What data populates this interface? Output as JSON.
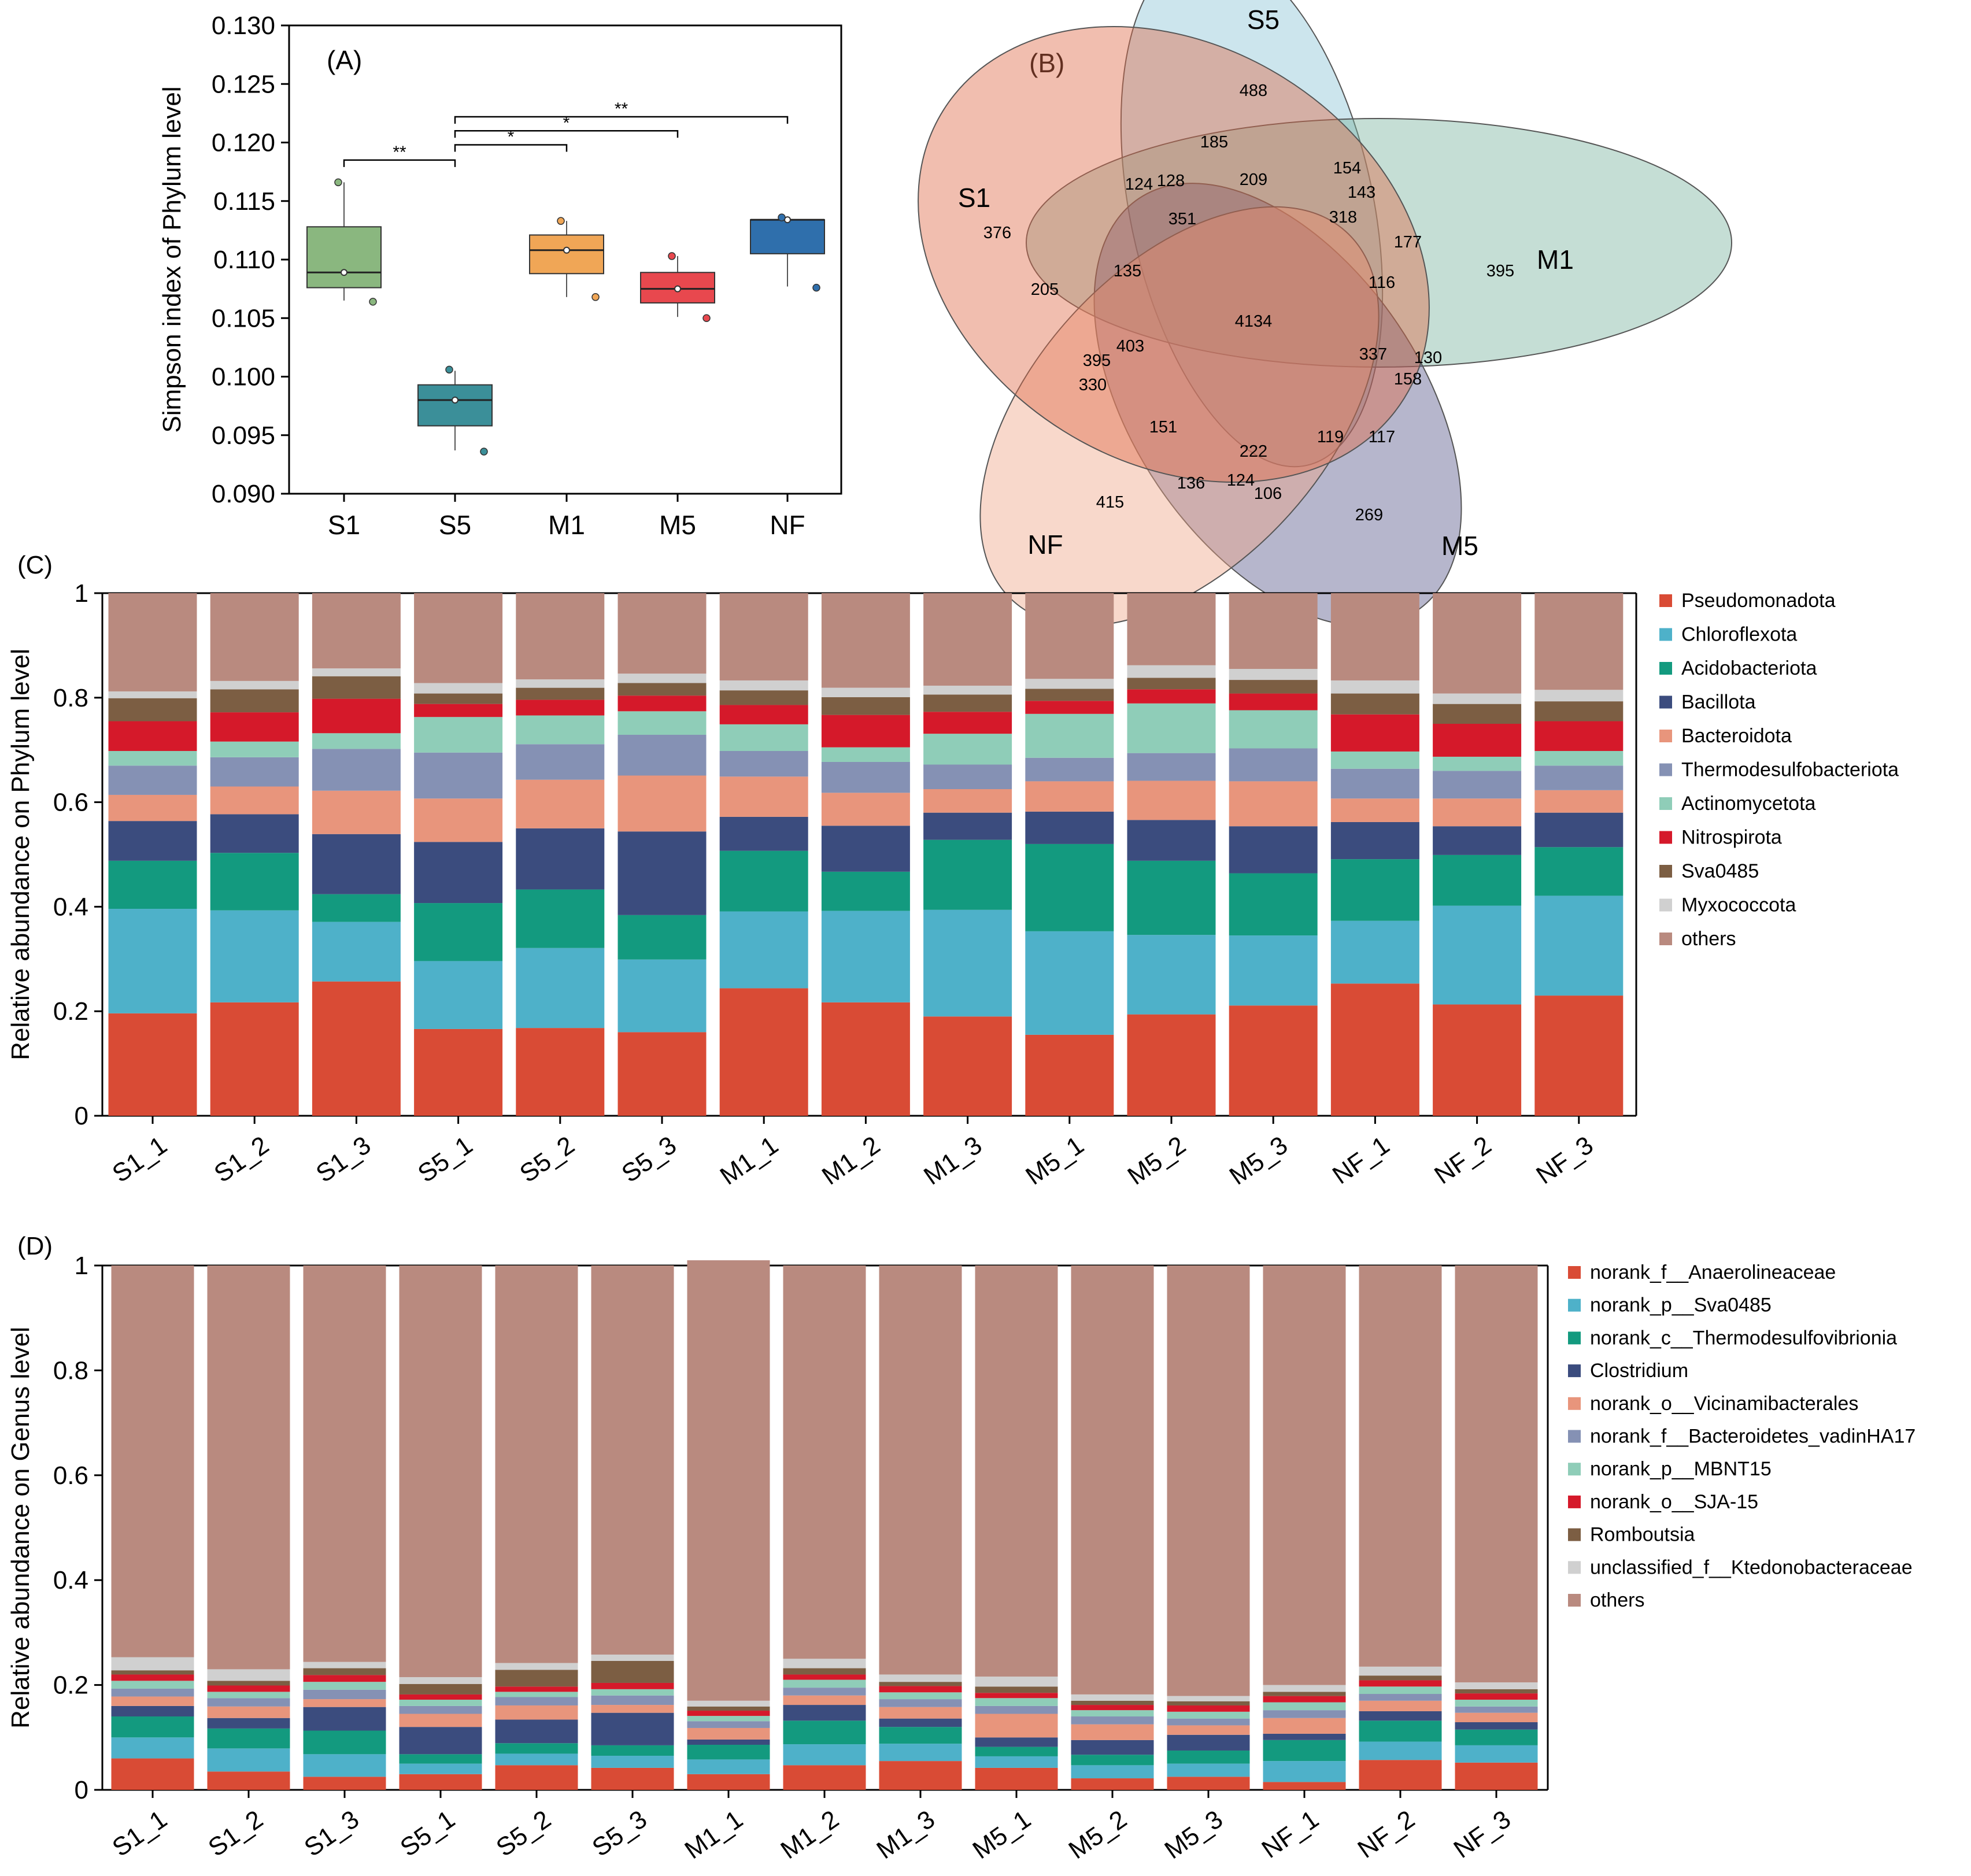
{
  "panel_labels": {
    "a": "(A)",
    "b": "(B)",
    "c": "(C)",
    "d": "(D)"
  },
  "chart_data": [
    {
      "id": "A",
      "type": "box",
      "label": "(A)",
      "ylabel": "Simpson index of Phylum level",
      "ylim": [
        0.09,
        0.13
      ],
      "yticks": [
        0.09,
        0.095,
        0.1,
        0.105,
        0.11,
        0.115,
        0.12,
        0.125,
        0.13
      ],
      "ytick_labels": [
        "0.090",
        "0.095",
        "0.100",
        "0.105",
        "0.110",
        "0.115",
        "0.120",
        "0.125",
        "0.130"
      ],
      "categories": [
        "S1",
        "S5",
        "M1",
        "M5",
        "NF"
      ],
      "colors": [
        "#8ab77f",
        "#3b8f99",
        "#f0a656",
        "#e8484e",
        "#2f6fac"
      ],
      "boxes": [
        {
          "name": "S1",
          "q1": 0.1076,
          "median": 0.1089,
          "q3": 0.1128,
          "whisker_low": 0.1065,
          "whisker_high": 0.1166,
          "mean": 0.1089,
          "points": [
            0.1166,
            0.1064
          ]
        },
        {
          "name": "S5",
          "q1": 0.0958,
          "median": 0.098,
          "q3": 0.0993,
          "whisker_low": 0.0937,
          "whisker_high": 0.1005,
          "mean": 0.098,
          "points": [
            0.1006,
            0.0936
          ]
        },
        {
          "name": "M1",
          "q1": 0.1088,
          "median": 0.1108,
          "q3": 0.1121,
          "whisker_low": 0.1068,
          "whisker_high": 0.1133,
          "mean": 0.1108,
          "points": [
            0.1133,
            0.1068
          ]
        },
        {
          "name": "M5",
          "q1": 0.1063,
          "median": 0.1075,
          "q3": 0.1089,
          "whisker_low": 0.1051,
          "whisker_high": 0.1103,
          "mean": 0.1075,
          "points": [
            0.1103,
            0.105
          ]
        },
        {
          "name": "NF",
          "q1": 0.1105,
          "median": 0.1134,
          "q3": 0.1134,
          "whisker_low": 0.1077,
          "whisker_high": 0.1136,
          "mean": 0.1134,
          "points": [
            0.1136,
            0.1076
          ]
        }
      ],
      "significance": [
        {
          "from": "S1",
          "to": "S5",
          "label": "**",
          "level": 0.1185
        },
        {
          "from": "S5",
          "to": "M1",
          "label": "*",
          "level": 0.1198
        },
        {
          "from": "S5",
          "to": "M5",
          "label": "*",
          "level": 0.121
        },
        {
          "from": "S5",
          "to": "NF",
          "label": "**",
          "level": 0.1222
        }
      ]
    },
    {
      "id": "B",
      "type": "venn",
      "label": "(B)",
      "sets": [
        {
          "name": "S5",
          "color": "#8ec5d7"
        },
        {
          "name": "M1",
          "color": "#7cb59f"
        },
        {
          "name": "M5",
          "color": "#47477f"
        },
        {
          "name": "NF",
          "color": "#eea486"
        },
        {
          "name": "S1",
          "color": "#e06a48"
        }
      ],
      "regions": [
        {
          "sets": [
            "S5"
          ],
          "count": "488"
        },
        {
          "sets": [
            "M1"
          ],
          "count": "395"
        },
        {
          "sets": [
            "M5"
          ],
          "count": "269"
        },
        {
          "sets": [
            "NF"
          ],
          "count": "415"
        },
        {
          "sets": [
            "S1"
          ],
          "count": "376"
        },
        {
          "sets": [
            "S5",
            "M5"
          ],
          "count": "185"
        },
        {
          "sets": [
            "S5",
            "M1"
          ],
          "count": "154"
        },
        {
          "sets": [
            "S1",
            "S5"
          ],
          "count": "124"
        },
        {
          "sets": [
            "S1",
            "S5",
            "M5"
          ],
          "count": "128"
        },
        {
          "sets": [
            "S5",
            "M1",
            "M5"
          ],
          "count": "209"
        },
        {
          "sets": [
            "S5",
            "M1",
            "NF"
          ],
          "count": "143"
        },
        {
          "sets": [
            "S1",
            "S5",
            "M1",
            "M5"
          ],
          "count": "351"
        },
        {
          "sets": [
            "S5",
            "M1",
            "M5",
            "NF"
          ],
          "count": "318"
        },
        {
          "sets": [
            "M1",
            "NF"
          ],
          "count": "177"
        },
        {
          "sets": [
            "S1",
            "M1"
          ],
          "count": "205"
        },
        {
          "sets": [
            "S1",
            "S5",
            "M1"
          ],
          "count": "135"
        },
        {
          "sets": [
            "M1",
            "M5",
            "NF"
          ],
          "count": "116"
        },
        {
          "sets": [
            "S1",
            "S5",
            "M1",
            "M5",
            "NF"
          ],
          "count": "4134"
        },
        {
          "sets": [
            "S1",
            "M1",
            "NF"
          ],
          "count": "395"
        },
        {
          "sets": [
            "S1",
            "M1",
            "M5",
            "NF"
          ],
          "count": "403"
        },
        {
          "sets": [
            "S1",
            "NF"
          ],
          "count": "330"
        },
        {
          "sets": [
            "M1",
            "M5"
          ],
          "count": "337"
        },
        {
          "sets": [
            "M1",
            "M5",
            "NF",
            "S5"
          ],
          "count": "130"
        },
        {
          "sets": [
            "M5",
            "NF",
            "S5"
          ],
          "count": "158"
        },
        {
          "sets": [
            "S1",
            "M5",
            "NF"
          ],
          "count": "151"
        },
        {
          "sets": [
            "S1",
            "S5",
            "M5",
            "NF"
          ],
          "count": "222"
        },
        {
          "sets": [
            "M5",
            "NF"
          ],
          "count": "119"
        },
        {
          "sets": [
            "S5",
            "M5",
            "NF"
          ],
          "count": "117"
        },
        {
          "sets": [
            "S1",
            "S5",
            "NF"
          ],
          "count": "136"
        },
        {
          "sets": [
            "S1",
            "M5"
          ],
          "count": "124"
        },
        {
          "sets": [
            "S1",
            "S5",
            "M5",
            "M1"
          ],
          "count": "106"
        }
      ]
    },
    {
      "id": "C",
      "type": "stacked_bar",
      "label": "(C)",
      "ylabel": "Relative abundance on Phylum level",
      "ylim": [
        0,
        1
      ],
      "yticks": [
        0,
        0.2,
        0.4,
        0.6,
        0.8,
        1
      ],
      "ytick_labels": [
        "0",
        "0.2",
        "0.4",
        "0.6",
        "0.8",
        "1"
      ],
      "categories": [
        "S1_1",
        "S1_2",
        "S1_3",
        "S5_1",
        "S5_2",
        "S5_3",
        "M1_1",
        "M1_2",
        "M1_3",
        "M5_1",
        "M5_2",
        "M5_3",
        "NF_1",
        "NF_2",
        "NF_3"
      ],
      "series": [
        {
          "name": "Pseudomonadota",
          "color": "#d94b35",
          "values": [
            0.196,
            0.217,
            0.257,
            0.166,
            0.168,
            0.16,
            0.244,
            0.217,
            0.19,
            0.155,
            0.194,
            0.211,
            0.253,
            0.213,
            0.23
          ]
        },
        {
          "name": "Chloroflexota",
          "color": "#4eb1c9",
          "values": [
            0.2,
            0.176,
            0.114,
            0.13,
            0.153,
            0.139,
            0.147,
            0.175,
            0.204,
            0.198,
            0.152,
            0.134,
            0.12,
            0.189,
            0.191
          ]
        },
        {
          "name": "Acidobacteriota",
          "color": "#139a7f",
          "values": [
            0.092,
            0.11,
            0.053,
            0.111,
            0.112,
            0.085,
            0.116,
            0.075,
            0.134,
            0.167,
            0.142,
            0.119,
            0.118,
            0.097,
            0.093
          ]
        },
        {
          "name": "Bacillota",
          "color": "#3b4c7e",
          "values": [
            0.076,
            0.074,
            0.115,
            0.117,
            0.117,
            0.16,
            0.065,
            0.088,
            0.052,
            0.062,
            0.078,
            0.09,
            0.071,
            0.055,
            0.066
          ]
        },
        {
          "name": "Bacteroidota",
          "color": "#e8957c",
          "values": [
            0.05,
            0.053,
            0.083,
            0.083,
            0.093,
            0.107,
            0.077,
            0.063,
            0.045,
            0.058,
            0.075,
            0.086,
            0.045,
            0.053,
            0.043
          ]
        },
        {
          "name": "Thermodesulfobacteriota",
          "color": "#8591b4",
          "values": [
            0.056,
            0.056,
            0.08,
            0.088,
            0.068,
            0.078,
            0.049,
            0.059,
            0.047,
            0.045,
            0.053,
            0.063,
            0.057,
            0.053,
            0.047
          ]
        },
        {
          "name": "Actinomycetota",
          "color": "#8fcdb8",
          "values": [
            0.028,
            0.03,
            0.03,
            0.068,
            0.055,
            0.045,
            0.051,
            0.028,
            0.059,
            0.084,
            0.095,
            0.073,
            0.033,
            0.027,
            0.028
          ]
        },
        {
          "name": "Nitrospirota",
          "color": "#d5192a",
          "values": [
            0.057,
            0.056,
            0.066,
            0.025,
            0.03,
            0.03,
            0.037,
            0.062,
            0.042,
            0.025,
            0.027,
            0.032,
            0.071,
            0.063,
            0.057
          ]
        },
        {
          "name": "Sva0485",
          "color": "#7c5e43",
          "values": [
            0.044,
            0.044,
            0.043,
            0.02,
            0.023,
            0.024,
            0.028,
            0.034,
            0.033,
            0.023,
            0.022,
            0.026,
            0.04,
            0.038,
            0.038
          ]
        },
        {
          "name": "Myxococcota",
          "color": "#d0d0d0",
          "values": [
            0.013,
            0.016,
            0.015,
            0.02,
            0.016,
            0.018,
            0.019,
            0.018,
            0.017,
            0.019,
            0.024,
            0.021,
            0.025,
            0.02,
            0.022
          ]
        },
        {
          "name": "others",
          "color": "#b98a7f",
          "values": [
            0.188,
            0.168,
            0.144,
            0.172,
            0.165,
            0.154,
            0.167,
            0.181,
            0.177,
            0.164,
            0.138,
            0.145,
            0.167,
            0.192,
            0.185
          ]
        }
      ]
    },
    {
      "id": "D",
      "type": "stacked_bar",
      "label": "(D)",
      "ylabel": "Relative abundance on Genus level",
      "ylim": [
        0,
        1
      ],
      "yticks": [
        0,
        0.2,
        0.4,
        0.6,
        0.8,
        1
      ],
      "ytick_labels": [
        "0",
        "0.2",
        "0.4",
        "0.6",
        "0.8",
        "1"
      ],
      "categories": [
        "S1_1",
        "S1_2",
        "S1_3",
        "S5_1",
        "S5_2",
        "S5_3",
        "M1_1",
        "M1_2",
        "M1_3",
        "M5_1",
        "M5_2",
        "M5_3",
        "NF_1",
        "NF_2",
        "NF_3"
      ],
      "series": [
        {
          "name": "norank_f__Anaerolineaceae",
          "color": "#d94b35",
          "values": [
            0.06,
            0.035,
            0.025,
            0.03,
            0.047,
            0.042,
            0.03,
            0.047,
            0.055,
            0.042,
            0.022,
            0.025,
            0.015,
            0.057,
            0.052
          ]
        },
        {
          "name": "norank_p__Sva0485",
          "color": "#4eb1c9",
          "values": [
            0.04,
            0.044,
            0.043,
            0.02,
            0.022,
            0.023,
            0.028,
            0.04,
            0.033,
            0.022,
            0.025,
            0.025,
            0.04,
            0.035,
            0.033
          ]
        },
        {
          "name": "norank_c__Thermodesulfovibrionia",
          "color": "#139a7f",
          "values": [
            0.04,
            0.038,
            0.045,
            0.018,
            0.02,
            0.02,
            0.028,
            0.045,
            0.032,
            0.018,
            0.02,
            0.025,
            0.04,
            0.04,
            0.03
          ]
        },
        {
          "name": "Clostridium",
          "color": "#3b4c7e",
          "values": [
            0.02,
            0.02,
            0.045,
            0.052,
            0.045,
            0.062,
            0.01,
            0.03,
            0.016,
            0.018,
            0.028,
            0.03,
            0.012,
            0.018,
            0.014
          ]
        },
        {
          "name": "norank_o__Vicinamibacterales",
          "color": "#e8957c",
          "values": [
            0.018,
            0.022,
            0.015,
            0.025,
            0.027,
            0.015,
            0.022,
            0.018,
            0.022,
            0.045,
            0.03,
            0.018,
            0.03,
            0.02,
            0.018
          ]
        },
        {
          "name": "norank_f__Bacteroidetes_vadinHA17",
          "color": "#8591b4",
          "values": [
            0.015,
            0.016,
            0.018,
            0.015,
            0.016,
            0.018,
            0.013,
            0.015,
            0.015,
            0.015,
            0.015,
            0.013,
            0.015,
            0.013,
            0.012
          ]
        },
        {
          "name": "norank_p__MBNT15",
          "color": "#8fcdb8",
          "values": [
            0.015,
            0.012,
            0.015,
            0.012,
            0.01,
            0.012,
            0.01,
            0.015,
            0.013,
            0.015,
            0.012,
            0.013,
            0.015,
            0.014,
            0.013
          ]
        },
        {
          "name": "norank_o__SJA-15",
          "color": "#d5192a",
          "values": [
            0.012,
            0.012,
            0.013,
            0.01,
            0.01,
            0.012,
            0.01,
            0.01,
            0.012,
            0.01,
            0.01,
            0.012,
            0.012,
            0.012,
            0.012
          ]
        },
        {
          "name": "Romboutsia",
          "color": "#7c5e43",
          "values": [
            0.008,
            0.009,
            0.013,
            0.02,
            0.032,
            0.042,
            0.008,
            0.012,
            0.008,
            0.012,
            0.008,
            0.008,
            0.008,
            0.009,
            0.008
          ]
        },
        {
          "name": "unclassified_f__Ktedonobacteraceae",
          "color": "#d0d0d0",
          "values": [
            0.025,
            0.022,
            0.012,
            0.013,
            0.013,
            0.012,
            0.011,
            0.018,
            0.014,
            0.019,
            0.012,
            0.01,
            0.013,
            0.017,
            0.013
          ]
        },
        {
          "name": "others",
          "color": "#b98a7f",
          "values": [
            0.747,
            0.77,
            0.756,
            0.785,
            0.758,
            0.742,
            0.84,
            0.75,
            0.78,
            0.784,
            0.818,
            0.821,
            0.8,
            0.765,
            0.795
          ]
        }
      ]
    }
  ]
}
